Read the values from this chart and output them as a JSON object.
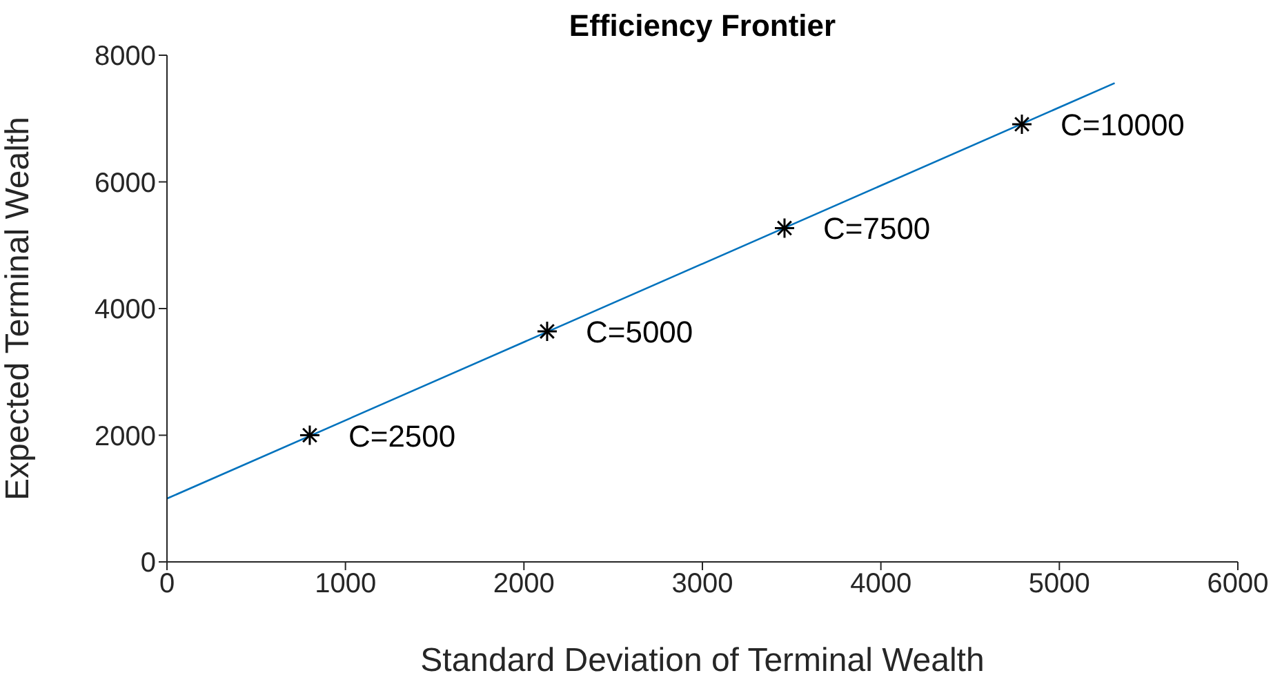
{
  "chart_data": {
    "type": "line",
    "title": "Efficiency Frontier",
    "xlabel": "Standard Deviation of Terminal Wealth",
    "ylabel": "Expected Terminal Wealth",
    "xlim": [
      0,
      6000
    ],
    "xticks": [
      0,
      1000,
      2000,
      3000,
      4000,
      5000,
      6000
    ],
    "ylim": [
      0,
      8000
    ],
    "yticks": [
      0,
      2000,
      4000,
      6000,
      8000
    ],
    "grid": false,
    "legend": false,
    "series": [
      {
        "color": "#0072bd",
        "marker": "none",
        "x": [
          0,
          5310
        ],
        "values": [
          1000,
          7560
        ]
      },
      {
        "type": "scatter",
        "color": "#000000",
        "marker": "cross",
        "x": [
          800,
          2130,
          3460,
          4790
        ],
        "values": [
          2000,
          3640,
          5270,
          6910
        ]
      }
    ],
    "annotations": [
      {
        "text": "C=2500",
        "x": 800,
        "y": 2000
      },
      {
        "text": "C=5000",
        "x": 2130,
        "y": 3640
      },
      {
        "text": "C=7500",
        "x": 3460,
        "y": 5270
      },
      {
        "text": "C=10000",
        "x": 4790,
        "y": 6910
      }
    ]
  }
}
